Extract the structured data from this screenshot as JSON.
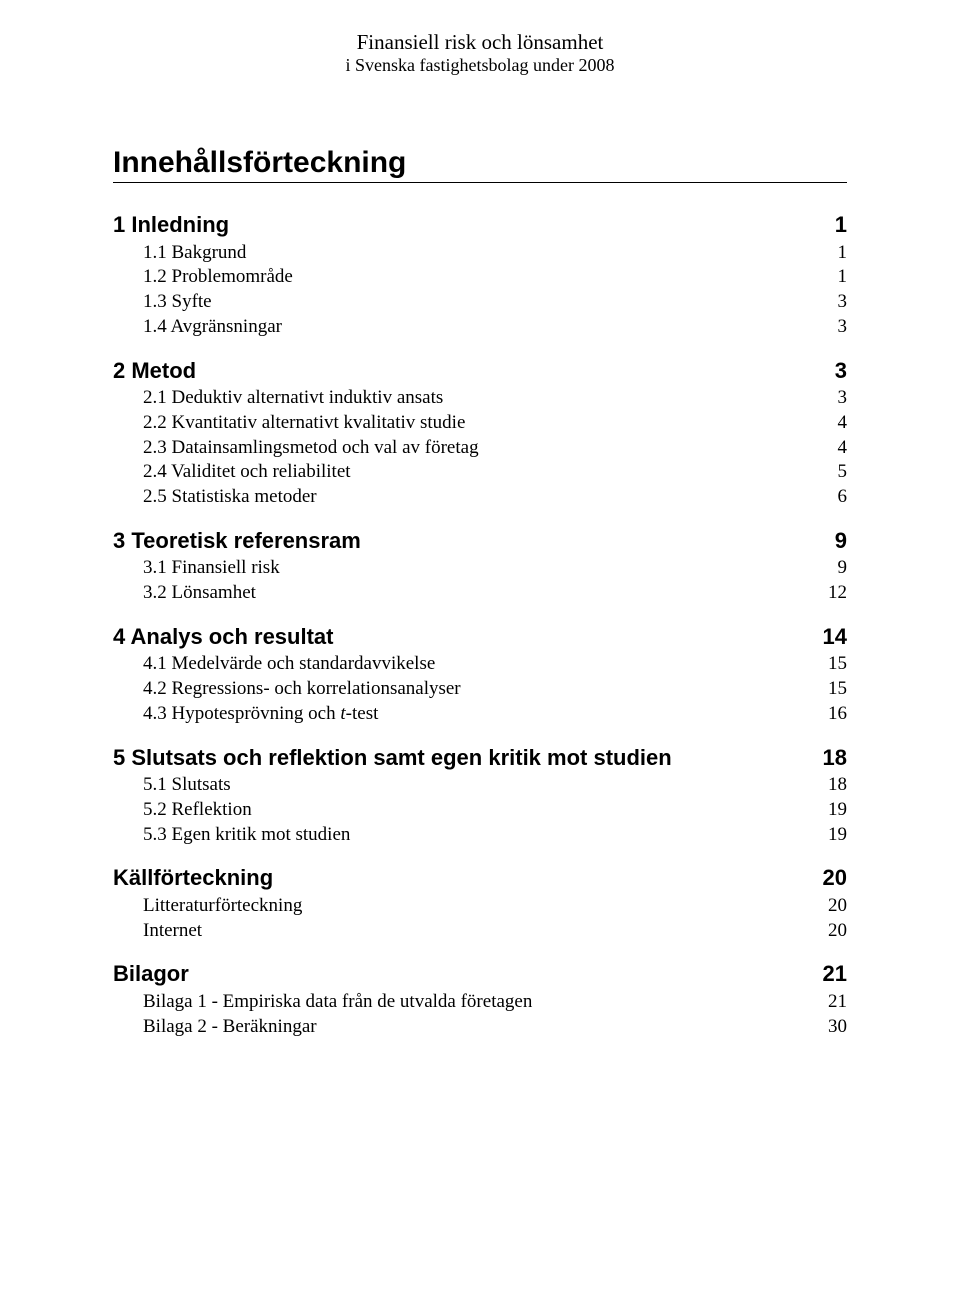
{
  "header": {
    "line1": "Finansiell risk och lönsamhet",
    "line2": "i Svenska fastighetsbolag under 2008"
  },
  "title": "Innehållsförteckning",
  "entries": [
    {
      "level": 1,
      "label": "1 Inledning",
      "page": "1"
    },
    {
      "level": 2,
      "label": "1.1 Bakgrund",
      "page": "1"
    },
    {
      "level": 2,
      "label": "1.2 Problemområde",
      "page": "1"
    },
    {
      "level": 2,
      "label": "1.3 Syfte",
      "page": "3"
    },
    {
      "level": 2,
      "label": "1.4 Avgränsningar",
      "page": "3"
    },
    {
      "level": 1,
      "label": "2 Metod",
      "page": "3"
    },
    {
      "level": 2,
      "label": "2.1 Deduktiv alternativt induktiv ansats",
      "page": "3"
    },
    {
      "level": 2,
      "label": "2.2 Kvantitativ alternativt kvalitativ studie",
      "page": "4"
    },
    {
      "level": 2,
      "label": "2.3 Datainsamlingsmetod och val av företag",
      "page": "4"
    },
    {
      "level": 2,
      "label": "2.4 Validitet och reliabilitet",
      "page": "5"
    },
    {
      "level": 2,
      "label": "2.5 Statistiska metoder",
      "page": "6"
    },
    {
      "level": 1,
      "label": "3 Teoretisk referensram",
      "page": "9"
    },
    {
      "level": 2,
      "label": "3.1 Finansiell risk",
      "page": "9"
    },
    {
      "level": 2,
      "label": "3.2 Lönsamhet",
      "page": "12"
    },
    {
      "level": 1,
      "label": "4 Analys och resultat",
      "page": "14"
    },
    {
      "level": 2,
      "label": "4.1 Medelvärde och standardavvikelse",
      "page": "15"
    },
    {
      "level": 2,
      "label": "4.2 Regressions- och korrelationsanalyser",
      "page": "15"
    },
    {
      "level": 2,
      "label": "4.3 Hypotesprövning och ",
      "italic_suffix": "t-",
      "after_suffix": "test",
      "page": "16"
    },
    {
      "level": 1,
      "label": "5 Slutsats och reflektion samt egen kritik mot studien",
      "page": "18"
    },
    {
      "level": 2,
      "label": "5.1 Slutsats",
      "page": "18"
    },
    {
      "level": 2,
      "label": "5.2 Reflektion",
      "page": "19"
    },
    {
      "level": 2,
      "label": "5.3 Egen kritik mot studien",
      "page": "19"
    },
    {
      "level": 1,
      "label": "Källförteckning",
      "page": "20"
    },
    {
      "level": 2,
      "label": "Litteraturförteckning",
      "page": "20"
    },
    {
      "level": 2,
      "label": "Internet",
      "page": "20"
    },
    {
      "level": 1,
      "label": "Bilagor",
      "page": "21"
    },
    {
      "level": 2,
      "label": "Bilaga 1 - Empiriska data från de utvalda företagen",
      "page": "21"
    },
    {
      "level": 2,
      "label": "Bilaga 2 - Beräkningar",
      "page": "30"
    }
  ],
  "colors": {
    "text": "#000000",
    "background": "#ffffff"
  },
  "typography": {
    "header_line1_fontsize": 21,
    "header_line2_fontsize": 18,
    "title_fontsize": 30,
    "lvl1_fontsize": 22,
    "lvl2_fontsize": 19,
    "title_font": "Arial",
    "body_font": "Times New Roman"
  }
}
